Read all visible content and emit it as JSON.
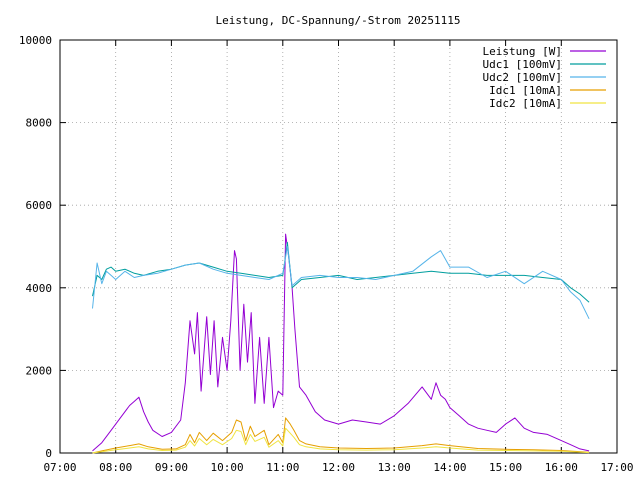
{
  "chart_data": {
    "type": "line",
    "title": "Leistung, DC-Spannung/-Strom 20251115",
    "xlabel": "",
    "ylabel": "",
    "xlim": [
      "07:00",
      "17:00"
    ],
    "ylim": [
      0,
      10000
    ],
    "x_ticks": [
      "07:00",
      "08:00",
      "09:00",
      "10:00",
      "11:00",
      "12:00",
      "13:00",
      "14:00",
      "15:00",
      "16:00",
      "17:00"
    ],
    "y_ticks": [
      "0",
      "2000",
      "4000",
      "6000",
      "8000",
      "10000"
    ],
    "grid": true,
    "legend_position": "top-right",
    "series": [
      {
        "name": "Leistung [W]",
        "color": "#9400d3",
        "x": [
          "07:35",
          "07:45",
          "07:55",
          "08:05",
          "08:15",
          "08:20",
          "08:25",
          "08:30",
          "08:35",
          "08:40",
          "08:50",
          "09:00",
          "09:10",
          "09:15",
          "09:20",
          "09:25",
          "09:28",
          "09:32",
          "09:38",
          "09:42",
          "09:46",
          "09:50",
          "09:55",
          "10:00",
          "10:04",
          "10:08",
          "10:10",
          "10:14",
          "10:18",
          "10:22",
          "10:26",
          "10:30",
          "10:35",
          "10:40",
          "10:45",
          "10:50",
          "10:55",
          "11:00",
          "11:03",
          "11:06",
          "11:10",
          "11:13",
          "11:18",
          "11:25",
          "11:35",
          "11:45",
          "12:00",
          "12:15",
          "12:30",
          "12:45",
          "13:00",
          "13:15",
          "13:30",
          "13:40",
          "13:45",
          "13:50",
          "13:55",
          "14:00",
          "14:10",
          "14:20",
          "14:30",
          "14:40",
          "14:50",
          "15:00",
          "15:10",
          "15:20",
          "15:30",
          "15:45",
          "16:00",
          "16:10",
          "16:20",
          "16:30"
        ],
        "y": [
          50,
          250,
          550,
          850,
          1150,
          1250,
          1350,
          1000,
          750,
          550,
          400,
          500,
          800,
          1700,
          3200,
          2400,
          3400,
          1500,
          3300,
          1900,
          3200,
          1600,
          2800,
          2000,
          3200,
          4900,
          4700,
          2000,
          3600,
          2200,
          3400,
          1200,
          2800,
          1200,
          2800,
          1100,
          1500,
          1400,
          5300,
          4800,
          4000,
          3000,
          1600,
          1400,
          1000,
          800,
          700,
          800,
          750,
          700,
          900,
          1200,
          1600,
          1300,
          1700,
          1400,
          1300,
          1100,
          900,
          700,
          600,
          550,
          500,
          700,
          850,
          600,
          500,
          450,
          300,
          200,
          100,
          50
        ]
      },
      {
        "name": "Udc1 [100mV]",
        "color": "#009e9e",
        "x": [
          "07:35",
          "07:40",
          "07:45",
          "07:50",
          "07:55",
          "08:00",
          "08:10",
          "08:20",
          "08:30",
          "08:45",
          "09:00",
          "09:15",
          "09:30",
          "09:45",
          "10:00",
          "10:15",
          "10:30",
          "10:45",
          "11:00",
          "11:05",
          "11:10",
          "11:20",
          "11:40",
          "12:00",
          "12:20",
          "12:40",
          "13:00",
          "13:20",
          "13:40",
          "14:00",
          "14:20",
          "14:40",
          "15:00",
          "15:20",
          "15:40",
          "16:00",
          "16:10",
          "16:20",
          "16:30"
        ],
        "y": [
          3800,
          4300,
          4200,
          4450,
          4500,
          4400,
          4450,
          4350,
          4300,
          4400,
          4450,
          4550,
          4600,
          4500,
          4400,
          4350,
          4300,
          4250,
          4300,
          5100,
          4000,
          4200,
          4250,
          4300,
          4200,
          4250,
          4300,
          4350,
          4400,
          4350,
          4350,
          4300,
          4300,
          4300,
          4250,
          4200,
          4000,
          3850,
          3650
        ]
      },
      {
        "name": "Udc2 [100mV]",
        "color": "#56b4e9",
        "x": [
          "07:35",
          "07:40",
          "07:45",
          "07:50",
          "07:55",
          "08:00",
          "08:10",
          "08:20",
          "08:30",
          "08:45",
          "09:00",
          "09:15",
          "09:30",
          "09:45",
          "10:00",
          "10:15",
          "10:30",
          "10:45",
          "11:00",
          "11:05",
          "11:10",
          "11:20",
          "11:40",
          "12:00",
          "12:20",
          "12:40",
          "13:00",
          "13:20",
          "13:40",
          "13:50",
          "14:00",
          "14:20",
          "14:40",
          "15:00",
          "15:20",
          "15:40",
          "16:00",
          "16:10",
          "16:20",
          "16:30"
        ],
        "y": [
          3500,
          4600,
          4100,
          4400,
          4300,
          4200,
          4400,
          4250,
          4300,
          4350,
          4450,
          4550,
          4600,
          4450,
          4350,
          4300,
          4250,
          4200,
          4350,
          5000,
          4050,
          4250,
          4300,
          4250,
          4250,
          4200,
          4300,
          4400,
          4750,
          4900,
          4500,
          4500,
          4250,
          4400,
          4100,
          4400,
          4200,
          3900,
          3700,
          3250
        ]
      },
      {
        "name": "Idc1 [10mA]",
        "color": "#e69f00",
        "x": [
          "07:35",
          "07:45",
          "08:00",
          "08:15",
          "08:25",
          "08:35",
          "08:50",
          "09:05",
          "09:15",
          "09:20",
          "09:25",
          "09:30",
          "09:38",
          "09:45",
          "09:55",
          "10:05",
          "10:10",
          "10:15",
          "10:20",
          "10:25",
          "10:30",
          "10:40",
          "10:45",
          "10:55",
          "11:00",
          "11:03",
          "11:08",
          "11:12",
          "11:18",
          "11:25",
          "11:40",
          "12:00",
          "12:30",
          "13:00",
          "13:30",
          "13:45",
          "14:00",
          "14:30",
          "15:00",
          "15:30",
          "16:00",
          "16:30"
        ],
        "y": [
          0,
          50,
          120,
          180,
          220,
          150,
          90,
          100,
          200,
          450,
          250,
          500,
          300,
          480,
          300,
          500,
          800,
          750,
          300,
          650,
          400,
          550,
          200,
          450,
          250,
          850,
          700,
          550,
          300,
          220,
          150,
          120,
          110,
          120,
          180,
          220,
          180,
          110,
          90,
          80,
          60,
          20
        ]
      },
      {
        "name": "Idc2 [10mA]",
        "color": "#f0e442",
        "x": [
          "07:35",
          "07:45",
          "08:00",
          "08:15",
          "08:25",
          "08:35",
          "08:50",
          "09:05",
          "09:15",
          "09:20",
          "09:25",
          "09:30",
          "09:38",
          "09:45",
          "09:55",
          "10:05",
          "10:10",
          "10:15",
          "10:20",
          "10:25",
          "10:30",
          "10:40",
          "10:45",
          "10:55",
          "11:00",
          "11:03",
          "11:08",
          "11:12",
          "11:18",
          "11:25",
          "11:40",
          "12:00",
          "12:30",
          "13:00",
          "13:30",
          "13:45",
          "14:00",
          "14:30",
          "15:00",
          "15:30",
          "16:00",
          "16:30"
        ],
        "y": [
          0,
          30,
          80,
          120,
          150,
          100,
          60,
          70,
          140,
          300,
          170,
          350,
          200,
          330,
          200,
          350,
          550,
          520,
          200,
          450,
          280,
          380,
          140,
          300,
          170,
          600,
          480,
          380,
          200,
          150,
          100,
          80,
          70,
          80,
          120,
          150,
          120,
          70,
          60,
          50,
          40,
          10
        ]
      }
    ]
  }
}
